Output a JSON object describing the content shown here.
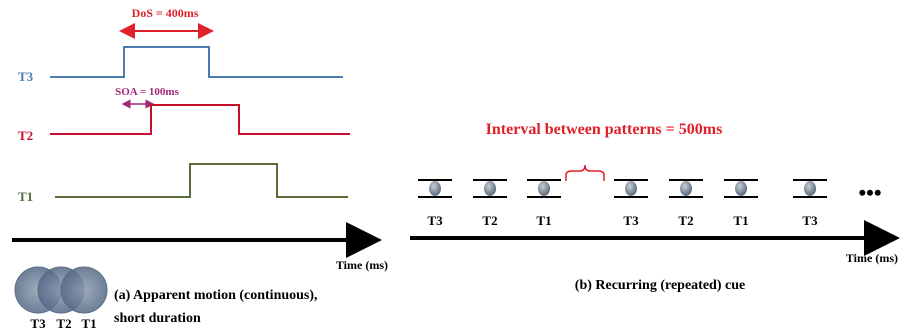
{
  "left_panel": {
    "dos_label": "DoS = 400ms",
    "soa_label": "SOA = 100ms",
    "tracks": [
      {
        "label": "T3",
        "color": "#4a7cb0"
      },
      {
        "label": "T2",
        "color": "#c8102e"
      },
      {
        "label": "T1",
        "color": "#5a6b3a"
      }
    ],
    "time_axis_label": "Time (ms)",
    "caption_line1": "(a) Apparent motion (continuous),",
    "caption_line2": "short duration",
    "venn_labels": [
      "T3",
      "T2",
      "T1"
    ]
  },
  "right_panel": {
    "interval_label": "Interval between patterns = 500ms",
    "sequence_labels": [
      "T3",
      "T2",
      "T1",
      "T3",
      "T2",
      "T1",
      "T3"
    ],
    "ellipsis": "•••",
    "time_axis_label": "Time (ms)",
    "caption": "(b) Recurring (repeated) cue"
  },
  "colors": {
    "accent_red": "#e0202a",
    "soa_purple": "#a0287a",
    "axis": "#000000",
    "circle_fill": "#6b7f95",
    "disc_fill": "#8a98a8"
  }
}
